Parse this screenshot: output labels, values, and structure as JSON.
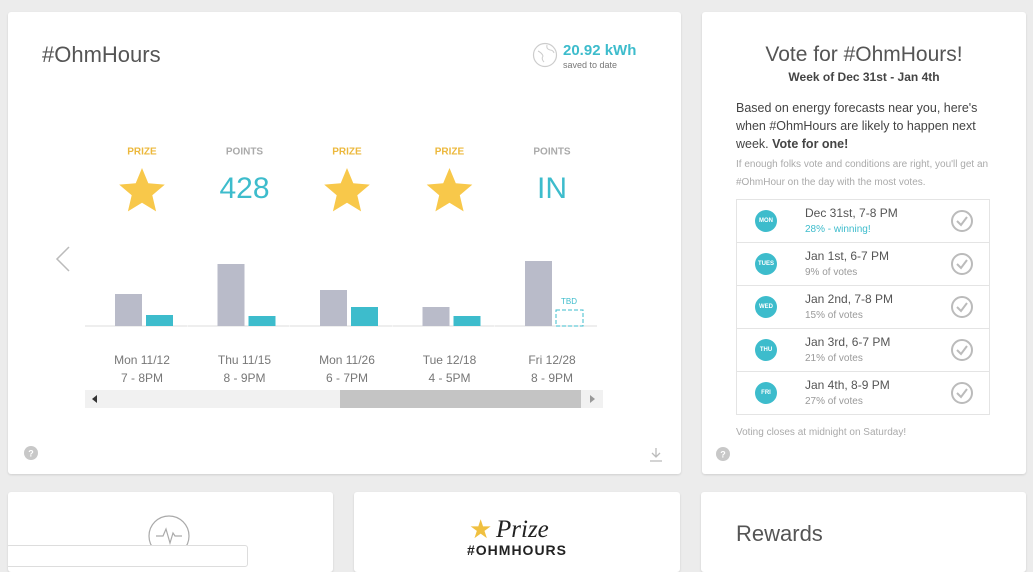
{
  "main_card": {
    "title": "#OhmHours",
    "saved_value": "20.92 kWh",
    "saved_label": "saved to date",
    "events": [
      {
        "result_label": "PRIZE",
        "date": "Mon 11/12",
        "time": "7 - 8PM",
        "baseline": 32,
        "actual": 11
      },
      {
        "result_label": "POINTS",
        "result_value": "428",
        "date": "Thu 11/15",
        "time": "8 - 9PM",
        "baseline": 62,
        "actual": 10
      },
      {
        "result_label": "PRIZE",
        "date": "Mon 11/26",
        "time": "6 - 7PM",
        "baseline": 36,
        "actual": 19
      },
      {
        "result_label": "PRIZE",
        "date": "Tue 12/18",
        "time": "4 - 5PM",
        "baseline": 19,
        "actual": 10
      },
      {
        "result_label": "POINTS",
        "result_value": "IN",
        "date": "Fri 12/28",
        "time": "8 - 9PM",
        "baseline": 65,
        "actual": null,
        "pending_label": "TBD"
      }
    ]
  },
  "vote_card": {
    "title": "Vote for #OhmHours!",
    "subtitle": "Week of Dec 31st - Jan 4th",
    "intro": "Based on energy forecasts near you, here's when #OhmHours are likely to happen next week.",
    "intro_emphasis": "Vote for one!",
    "note": "If enough folks vote and conditions are right, you'll get an #OhmHour on the day with the most votes.",
    "options": [
      {
        "day": "MON",
        "label": "Dec 31st, 7-8 PM",
        "votes": "28% - winning!"
      },
      {
        "day": "TUES",
        "label": "Jan 1st, 6-7 PM",
        "votes": "9% of votes"
      },
      {
        "day": "WED",
        "label": "Jan 2nd, 7-8 PM",
        "votes": "15% of votes"
      },
      {
        "day": "THU",
        "label": "Jan 3rd, 6-7 PM",
        "votes": "21% of votes"
      },
      {
        "day": "FRI",
        "label": "Jan 4th, 8-9 PM",
        "votes": "27% of votes"
      }
    ],
    "footer": "Voting closes at midnight on Saturday!"
  },
  "bottom_cards": {
    "prize_title": "Prize",
    "prize_subtitle": "#OHMHOURS",
    "rewards_title": "Rewards"
  }
}
